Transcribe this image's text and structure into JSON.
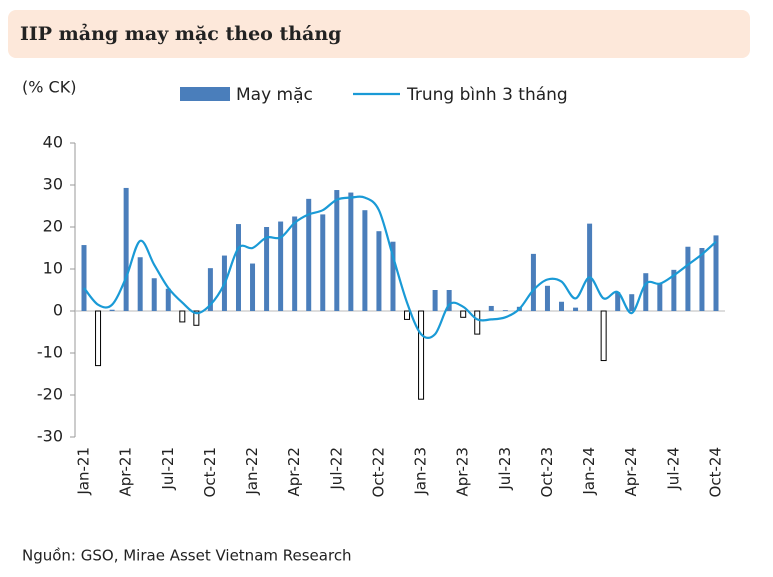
{
  "chart_data": {
    "type": "bar_line",
    "title": "IIP mảng may mặc theo tháng",
    "y_label": "(% CK)",
    "source": "Nguồn: GSO, Mirae Asset Vietnam Research",
    "categories": [
      "Jan-21",
      null,
      null,
      "Apr-21",
      null,
      null,
      "Jul-21",
      null,
      null,
      "Oct-21",
      null,
      null,
      "Jan-22",
      null,
      null,
      "Apr-22",
      null,
      null,
      "Jul-22",
      null,
      null,
      "Oct-22",
      null,
      null,
      "Jan-23",
      null,
      null,
      "Apr-23",
      null,
      null,
      "Jul-23",
      null,
      null,
      "Oct-23",
      null,
      null,
      "Jan-24",
      null,
      null,
      "Apr-24",
      null,
      null,
      "Jul-24",
      null,
      null,
      "Oct-24"
    ],
    "series": [
      {
        "name": "May mặc",
        "kind": "bar",
        "color": "#4a7ebb",
        "negative_color": "#ffffff",
        "values": [
          15.7,
          -13,
          0.3,
          29.3,
          12.8,
          7.8,
          5.3,
          -2.6,
          -3.4,
          10.2,
          13.2,
          20.7,
          11.3,
          20,
          21.3,
          22.5,
          26.7,
          23,
          28.8,
          28.2,
          24,
          19,
          16.5,
          -2,
          -21,
          5,
          5,
          -1.5,
          -5.5,
          1.2,
          0.2,
          1,
          13.6,
          6,
          2.2,
          0.8,
          20.8,
          -11.8,
          4.5,
          4,
          9,
          6.5,
          9.8,
          15.3,
          15,
          18
        ]
      },
      {
        "name": "Trung bình 3 tháng",
        "kind": "line",
        "color": "#1a9ad6",
        "values": [
          5.5,
          1.5,
          1.5,
          8,
          16.7,
          11,
          5.5,
          2,
          -0.5,
          1.5,
          6.5,
          15,
          15,
          17.5,
          17.5,
          21,
          23,
          24,
          26.5,
          27,
          27,
          24,
          13,
          2,
          -5.5,
          -5.5,
          1.5,
          1,
          -2,
          -2,
          -1.5,
          0.5,
          5,
          7.5,
          7,
          3,
          8,
          3,
          4.5,
          -0.5,
          6.5,
          6.5,
          8.5,
          11,
          13.5,
          16.5
        ]
      }
    ],
    "ylim": [
      -30,
      40
    ],
    "yticks": [
      -30,
      -20,
      -10,
      0,
      10,
      20,
      30,
      40
    ],
    "grid": false
  }
}
